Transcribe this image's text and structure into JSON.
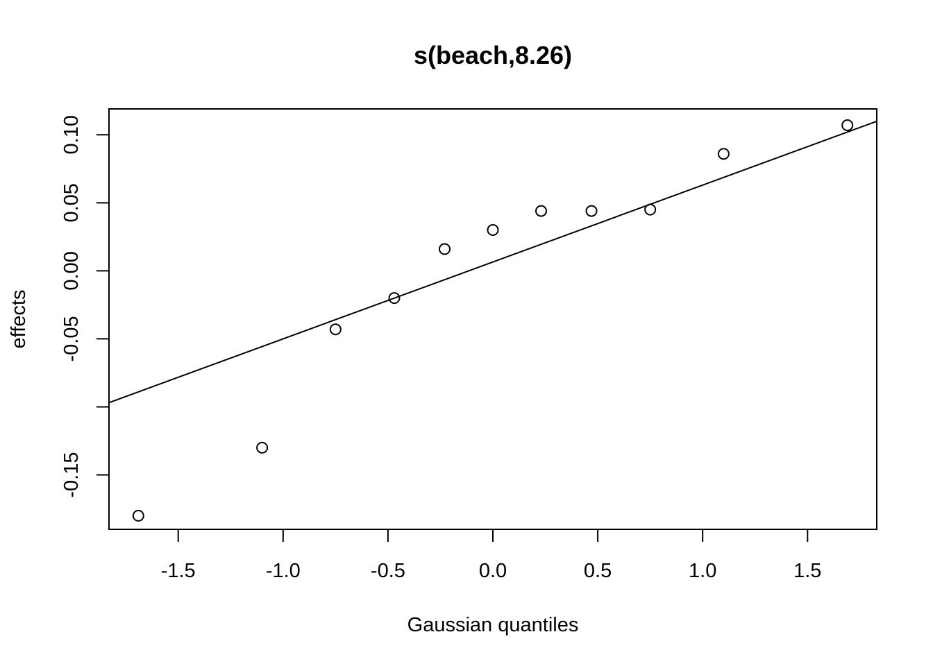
{
  "chart_data": {
    "type": "scatter",
    "title": "s(beach,8.26)",
    "xlabel": "Gaussian quantiles",
    "ylabel": "effects",
    "xlim": [
      -1.83,
      1.83
    ],
    "ylim": [
      -0.19,
      0.119
    ],
    "x_ticks": [
      {
        "value": -1.5,
        "label": "-1.5"
      },
      {
        "value": -1.0,
        "label": "-1.0"
      },
      {
        "value": -0.5,
        "label": "-0.5"
      },
      {
        "value": 0.0,
        "label": "0.0"
      },
      {
        "value": 0.5,
        "label": "0.5"
      },
      {
        "value": 1.0,
        "label": "1.0"
      },
      {
        "value": 1.5,
        "label": "1.5"
      }
    ],
    "y_ticks": [
      {
        "value": -0.15,
        "label": "-0.15"
      },
      {
        "value": -0.1,
        "label": ""
      },
      {
        "value": -0.05,
        "label": "-0.05"
      },
      {
        "value": 0.0,
        "label": "0.00"
      },
      {
        "value": 0.05,
        "label": "0.05"
      },
      {
        "value": 0.1,
        "label": "0.10"
      }
    ],
    "points": [
      {
        "x": -1.69,
        "y": -0.18
      },
      {
        "x": -1.1,
        "y": -0.13
      },
      {
        "x": -0.75,
        "y": -0.043
      },
      {
        "x": -0.47,
        "y": -0.02
      },
      {
        "x": -0.23,
        "y": 0.016
      },
      {
        "x": 0.0,
        "y": 0.03
      },
      {
        "x": 0.23,
        "y": 0.044
      },
      {
        "x": 0.47,
        "y": 0.044
      },
      {
        "x": 0.75,
        "y": 0.045
      },
      {
        "x": 1.1,
        "y": 0.086
      },
      {
        "x": 1.69,
        "y": 0.107
      }
    ],
    "reference_line": {
      "intercept": 0.0065,
      "slope": 0.0565
    },
    "grid": false,
    "legend": "none"
  }
}
